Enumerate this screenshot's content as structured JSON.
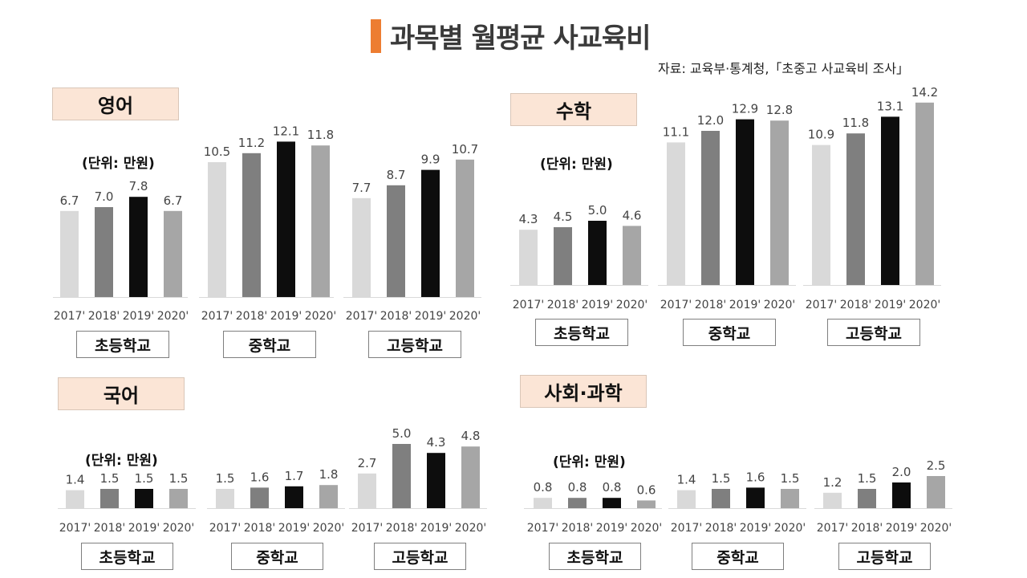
{
  "title": "과목별 월평균 사교육비",
  "source": "자료: 교육부·통계청,「초중고 사교육비 조사」",
  "unit_label": "(단위: 만원)",
  "colors": [
    "#d9d9d9",
    "#7f7f7f",
    "#0d0d0d",
    "#a6a6a6"
  ],
  "subjects": {
    "english": "영어",
    "math": "수학",
    "korean": "국어",
    "social_science": "사회·과학"
  },
  "levels": [
    "초등학교",
    "중학교",
    "고등학교"
  ],
  "chart_data": [
    {
      "type": "bar",
      "title": "영어",
      "ylabel": "(단위: 만원)",
      "categories": [
        "2017'",
        "2018'",
        "2019'",
        "2020'"
      ],
      "groups": [
        {
          "name": "초등학교",
          "values": [
            6.7,
            7.0,
            7.8,
            6.7
          ]
        },
        {
          "name": "중학교",
          "values": [
            10.5,
            11.2,
            12.1,
            11.8
          ]
        },
        {
          "name": "고등학교",
          "values": [
            7.7,
            8.7,
            9.9,
            10.7
          ]
        }
      ]
    },
    {
      "type": "bar",
      "title": "수학",
      "ylabel": "(단위: 만원)",
      "categories": [
        "2017'",
        "2018'",
        "2019'",
        "2020'"
      ],
      "groups": [
        {
          "name": "초등학교",
          "values": [
            4.3,
            4.5,
            5.0,
            4.6
          ]
        },
        {
          "name": "중학교",
          "values": [
            11.1,
            12.0,
            12.9,
            12.8
          ]
        },
        {
          "name": "고등학교",
          "values": [
            10.9,
            11.8,
            13.1,
            14.2
          ]
        }
      ]
    },
    {
      "type": "bar",
      "title": "국어",
      "ylabel": "(단위: 만원)",
      "categories": [
        "2017'",
        "2018'",
        "2019'",
        "2020'"
      ],
      "groups": [
        {
          "name": "초등학교",
          "values": [
            1.4,
            1.5,
            1.5,
            1.5
          ]
        },
        {
          "name": "중학교",
          "values": [
            1.5,
            1.6,
            1.7,
            1.8
          ]
        },
        {
          "name": "고등학교",
          "values": [
            2.7,
            5.0,
            4.3,
            4.8
          ]
        }
      ]
    },
    {
      "type": "bar",
      "title": "사회·과학",
      "ylabel": "(단위: 만원)",
      "categories": [
        "2017'",
        "2018'",
        "2019'",
        "2020'"
      ],
      "groups": [
        {
          "name": "초등학교",
          "values": [
            0.8,
            0.8,
            0.8,
            0.6
          ]
        },
        {
          "name": "중학교",
          "values": [
            1.4,
            1.5,
            1.6,
            1.5
          ]
        },
        {
          "name": "고등학교",
          "values": [
            1.2,
            1.5,
            2.0,
            2.5
          ]
        }
      ]
    }
  ]
}
